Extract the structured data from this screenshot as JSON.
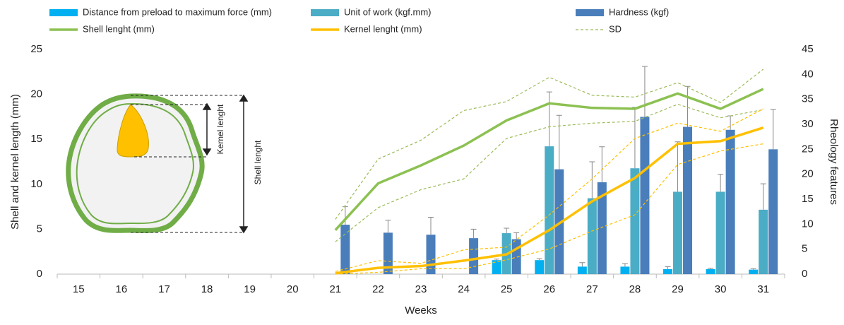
{
  "chart_data": {
    "type": "bar-line",
    "x_label": "Weeks",
    "y_label": "Shell and kernel length (mm)",
    "y2_label": "Rheology features",
    "categories": [
      "15",
      "16",
      "17",
      "18",
      "19",
      "20",
      "21",
      "22",
      "23",
      "24",
      "25",
      "26",
      "27",
      "28",
      "29",
      "30",
      "31"
    ],
    "ylim": [
      0,
      25
    ],
    "yticks": [
      0,
      5,
      10,
      15,
      20,
      25
    ],
    "y2lim": [
      0,
      45
    ],
    "y2ticks": [
      0,
      5,
      10,
      15,
      20,
      25,
      30,
      35,
      40,
      45
    ],
    "annotations": [
      "Kernel lenght",
      "Shell lenght"
    ],
    "series": [
      {
        "name": "Distance from preload to maximum force (mm)",
        "kind": "bar",
        "axis": "y2",
        "color": "#00b0f0",
        "values": [
          null,
          null,
          null,
          null,
          null,
          null,
          null,
          null,
          null,
          null,
          2.8,
          2.8,
          1.5,
          1.5,
          1.0,
          1.0,
          0.9
        ],
        "errors": [
          null,
          null,
          null,
          null,
          null,
          null,
          null,
          null,
          null,
          null,
          0.2,
          0.3,
          0.8,
          0.6,
          0.5,
          0.2,
          0.2
        ]
      },
      {
        "name": "Unit of work (kgf.mm)",
        "kind": "bar",
        "axis": "y2",
        "color": "#4bacc6",
        "values": [
          null,
          null,
          null,
          null,
          null,
          null,
          null,
          null,
          null,
          null,
          8.2,
          25.6,
          15.2,
          21.2,
          16.5,
          16.5,
          12.9
        ],
        "errors": [
          null,
          null,
          null,
          null,
          null,
          null,
          null,
          null,
          null,
          null,
          1.0,
          10.9,
          7.3,
          12.2,
          10,
          3.5,
          5.2
        ]
      },
      {
        "name": "Hardness (kgf)",
        "kind": "bar",
        "axis": "y2",
        "color": "#4a7ebb",
        "values": [
          null,
          null,
          null,
          null,
          null,
          null,
          9.9,
          8.3,
          7.9,
          7.2,
          7.0,
          21.0,
          18.4,
          31.5,
          29.5,
          28.9,
          25.0
        ],
        "errors": [
          null,
          null,
          null,
          null,
          null,
          null,
          3.6,
          2.5,
          3.5,
          1.8,
          1.3,
          10.8,
          7.1,
          10.1,
          8.1,
          2.8,
          8.0
        ]
      },
      {
        "name": "Shell lenght (mm)",
        "kind": "line",
        "color": "#8cc152",
        "values": [
          null,
          null,
          null,
          null,
          null,
          null,
          4.9,
          10.1,
          12.1,
          14.3,
          17.1,
          19.0,
          18.5,
          18.4,
          20.1,
          18.4,
          20.6
        ]
      },
      {
        "name": "Kernel lenght (mm)",
        "kind": "line",
        "color": "#ffc000",
        "values": [
          null,
          null,
          null,
          null,
          null,
          null,
          0.1,
          0.7,
          0.9,
          1.5,
          2.2,
          4.9,
          8.1,
          10.7,
          14.5,
          14.8,
          16.3
        ]
      },
      {
        "name": "SD",
        "kind": "dashed",
        "color": "#9bbb59",
        "lines": [
          {
            "color": "#9bbb59",
            "values": [
              null,
              null,
              null,
              null,
              null,
              null,
              6.1,
              12.8,
              14.9,
              18.2,
              19.2,
              21.9,
              19.9,
              19.7,
              21.3,
              19.1,
              22.8
            ]
          },
          {
            "color": "#9bbb59",
            "values": [
              null,
              null,
              null,
              null,
              null,
              null,
              3.6,
              7.4,
              9.4,
              10.6,
              15.1,
              16.4,
              16.8,
              17.0,
              18.9,
              17.4,
              18.3
            ]
          },
          {
            "color": "#ffc000",
            "values": [
              null,
              null,
              null,
              null,
              null,
              null,
              0.3,
              1.5,
              1.2,
              2.7,
              3.0,
              6.6,
              10.6,
              15.1,
              16.8,
              15.9,
              18.4
            ]
          },
          {
            "color": "#ffc000",
            "values": [
              null,
              null,
              null,
              null,
              null,
              null,
              0,
              0.2,
              0.6,
              0.6,
              1.6,
              2.8,
              4.8,
              6.6,
              12.2,
              13.7,
              14.5
            ]
          }
        ]
      }
    ]
  }
}
